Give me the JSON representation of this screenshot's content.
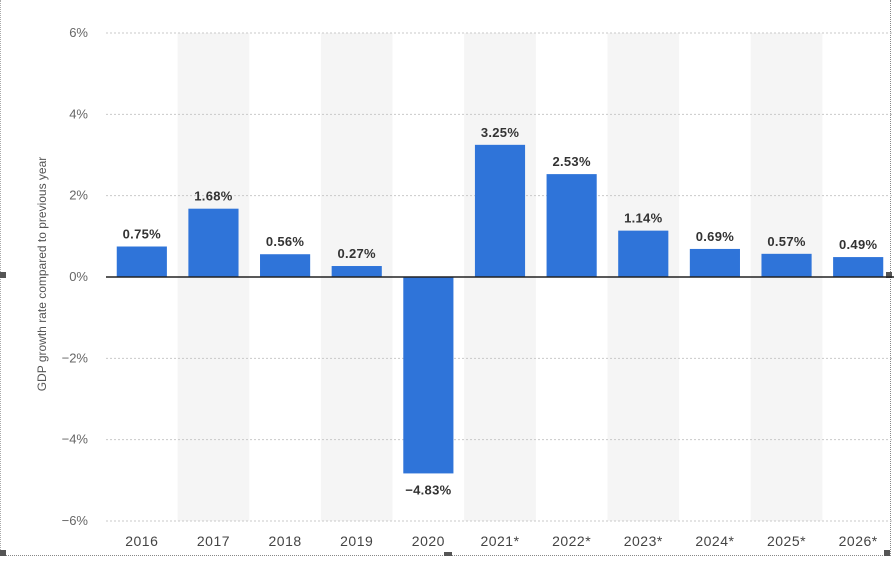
{
  "chart_data": {
    "type": "bar",
    "ylabel": "GDP growth rate compared to previous year",
    "xlabel": "",
    "categories": [
      "2016",
      "2017",
      "2018",
      "2019",
      "2020",
      "2021*",
      "2022*",
      "2023*",
      "2024*",
      "2025*",
      "2026*"
    ],
    "values": [
      0.75,
      1.68,
      0.56,
      0.27,
      -4.83,
      3.25,
      2.53,
      1.14,
      0.69,
      0.57,
      0.49
    ],
    "value_labels": [
      "0.75%",
      "1.68%",
      "0.56%",
      "0.27%",
      "−4.83%",
      "3.25%",
      "2.53%",
      "1.14%",
      "0.69%",
      "0.57%",
      "0.49%"
    ],
    "yticks": [
      6,
      4,
      2,
      0,
      -2,
      -4,
      -6
    ],
    "ytick_labels": [
      "6%",
      "4%",
      "2%",
      "0%",
      "−2%",
      "−4%",
      "−6%"
    ],
    "ylim": [
      -6,
      6
    ],
    "grid": true,
    "legend": "none",
    "bar_color": "#2f74d9",
    "band_color": "#f5f5f5"
  }
}
